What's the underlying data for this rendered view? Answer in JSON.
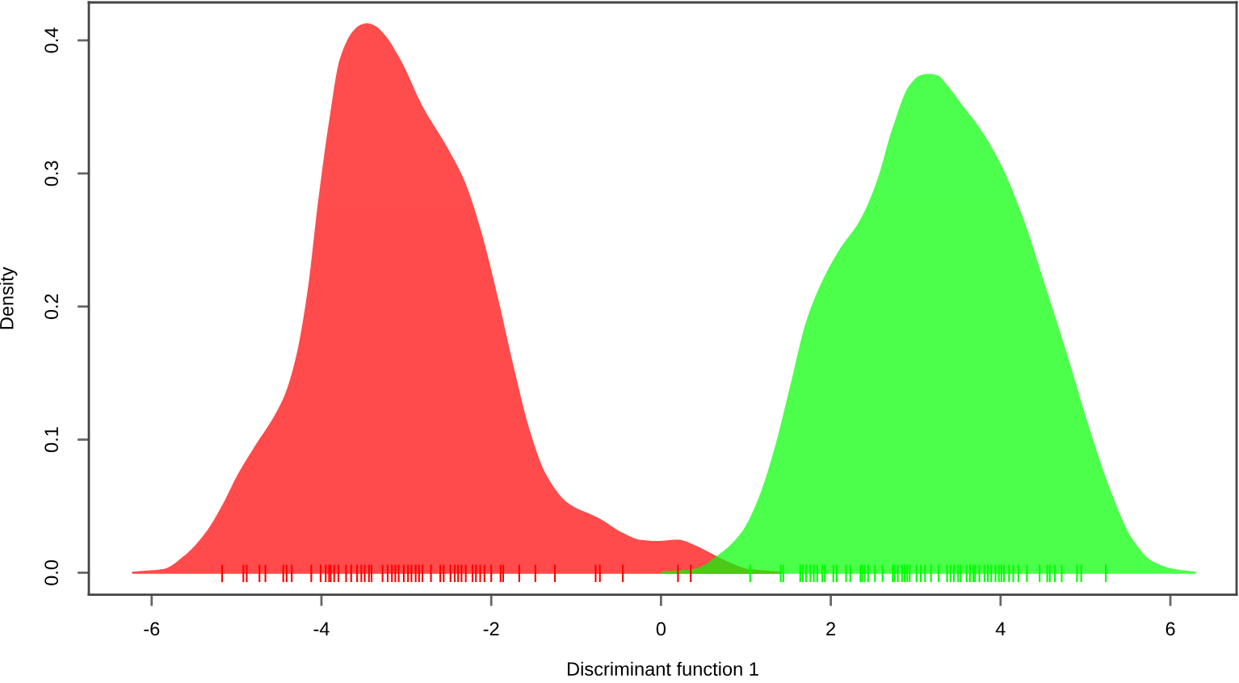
{
  "chart_data": {
    "type": "area",
    "xlabel": "Discriminant function 1",
    "ylabel": "Density",
    "xlim": [
      -6.74,
      6.78
    ],
    "ylim": [
      -0.0165,
      0.4285
    ],
    "xticks": [
      -6,
      -4,
      -2,
      0,
      2,
      4,
      6
    ],
    "yticks": [
      {
        "value": 0,
        "label": "0.0"
      },
      0.1,
      0.2,
      0.3,
      0.4
    ],
    "series": [
      {
        "color": "#ff0000",
        "x": [
          -6.22,
          -5.86,
          -5.61,
          -5.35,
          -5.16,
          -4.97,
          -4.78,
          -4.53,
          -4.41,
          -4.28,
          -4.15,
          -4.03,
          -3.9,
          -3.77,
          -3.61,
          -3.53,
          -3.46,
          -3.37,
          -3.27,
          -3.08,
          -2.82,
          -2.51,
          -2.32,
          -2.13,
          -1.94,
          -1.75,
          -1.56,
          -1.37,
          -1.11,
          -0.73,
          -0.45,
          -0.25,
          -0.05,
          0.2,
          0.39,
          0.58,
          0.77,
          1.03,
          1.41
        ],
        "values": [
          0,
          0.002,
          0.012,
          0.03,
          0.05,
          0.074,
          0.094,
          0.119,
          0.135,
          0.164,
          0.212,
          0.277,
          0.338,
          0.386,
          0.407,
          0.411,
          0.412,
          0.41,
          0.404,
          0.385,
          0.35,
          0.317,
          0.293,
          0.256,
          0.208,
          0.155,
          0.107,
          0.074,
          0.052,
          0.04,
          0.029,
          0.024,
          0.023,
          0.024,
          0.02,
          0.014,
          0.008,
          0.002,
          0
        ]
      },
      {
        "color": "#00ff00",
        "x": [
          0.01,
          0.39,
          0.71,
          0.96,
          1.15,
          1.34,
          1.53,
          1.72,
          1.92,
          2.11,
          2.36,
          2.55,
          2.74,
          2.93,
          3.06,
          3.15,
          3.25,
          3.37,
          3.56,
          3.75,
          4.01,
          4.26,
          4.51,
          4.77,
          5.02,
          5.28,
          5.53,
          5.78,
          6.04,
          6.29
        ],
        "values": [
          0,
          0.002,
          0.014,
          0.03,
          0.054,
          0.091,
          0.139,
          0.188,
          0.22,
          0.242,
          0.265,
          0.293,
          0.334,
          0.365,
          0.373,
          0.374,
          0.373,
          0.365,
          0.349,
          0.333,
          0.304,
          0.265,
          0.216,
          0.164,
          0.111,
          0.062,
          0.026,
          0.008,
          0.002,
          0
        ]
      },
      {
        "type": "bar",
        "color": "#ff0000",
        "x": [
          -5.17,
          -4.92,
          -4.88,
          -4.73,
          -4.66,
          -4.45,
          -4.41,
          -4.35,
          -4.12,
          -4.01,
          -3.95,
          -3.91,
          -3.89,
          -3.85,
          -3.8,
          -3.71,
          -3.65,
          -3.58,
          -3.53,
          -3.49,
          -3.44,
          -3.41,
          -3.28,
          -3.22,
          -3.17,
          -3.13,
          -3.09,
          -3.03,
          -2.98,
          -2.94,
          -2.89,
          -2.85,
          -2.81,
          -2.71,
          -2.6,
          -2.56,
          -2.48,
          -2.43,
          -2.39,
          -2.35,
          -2.3,
          -2.22,
          -2.18,
          -2.13,
          -2.08,
          -2.0,
          -1.89,
          -1.86,
          -1.67,
          -1.48,
          -1.25,
          -0.77,
          -0.72,
          -0.45,
          0.2,
          0.35
        ],
        "base": [
          -0.007,
          -0.007,
          -0.007,
          -0.007,
          -0.007,
          -0.007,
          -0.007,
          -0.007,
          -0.007,
          -0.007,
          -0.007,
          -0.007,
          -0.007,
          -0.007,
          -0.007,
          -0.007,
          -0.007,
          -0.007,
          -0.007,
          -0.007,
          -0.007,
          -0.007,
          -0.007,
          -0.007,
          -0.007,
          -0.007,
          -0.007,
          -0.007,
          -0.007,
          -0.007,
          -0.007,
          -0.007,
          -0.007,
          -0.007,
          -0.007,
          -0.007,
          -0.007,
          -0.007,
          -0.007,
          -0.007,
          -0.007,
          -0.007,
          -0.007,
          -0.007,
          -0.007,
          -0.007,
          -0.007,
          -0.007,
          -0.007,
          -0.007,
          -0.007,
          -0.007,
          -0.007,
          -0.007,
          -0.007,
          -0.007
        ],
        "values": [
          0.013,
          0.013,
          0.013,
          0.013,
          0.013,
          0.013,
          0.013,
          0.013,
          0.013,
          0.013,
          0.013,
          0.013,
          0.013,
          0.013,
          0.013,
          0.013,
          0.013,
          0.013,
          0.013,
          0.013,
          0.013,
          0.013,
          0.013,
          0.013,
          0.013,
          0.013,
          0.013,
          0.013,
          0.013,
          0.013,
          0.013,
          0.013,
          0.013,
          0.013,
          0.013,
          0.013,
          0.013,
          0.013,
          0.013,
          0.013,
          0.013,
          0.013,
          0.013,
          0.013,
          0.013,
          0.013,
          0.013,
          0.013,
          0.013,
          0.013,
          0.013,
          0.013,
          0.013,
          0.013,
          0.013,
          0.013
        ]
      },
      {
        "type": "bar",
        "color": "#00ff00",
        "x": [
          1.05,
          1.41,
          1.44,
          1.64,
          1.67,
          1.71,
          1.76,
          1.8,
          1.84,
          1.9,
          1.93,
          2.03,
          2.07,
          2.18,
          2.23,
          2.35,
          2.37,
          2.4,
          2.44,
          2.52,
          2.61,
          2.73,
          2.75,
          2.79,
          2.84,
          2.87,
          2.9,
          2.93,
          3.01,
          3.06,
          3.11,
          3.18,
          3.27,
          3.37,
          3.41,
          3.45,
          3.5,
          3.53,
          3.6,
          3.64,
          3.68,
          3.7,
          3.75,
          3.81,
          3.85,
          3.89,
          3.94,
          3.98,
          4.01,
          4.04,
          4.1,
          4.15,
          4.21,
          4.31,
          4.46,
          4.55,
          4.58,
          4.64,
          4.72,
          4.9,
          4.95,
          5.24
        ],
        "base": [
          -0.007,
          -0.007,
          -0.007,
          -0.007,
          -0.007,
          -0.007,
          -0.007,
          -0.007,
          -0.007,
          -0.007,
          -0.007,
          -0.007,
          -0.007,
          -0.007,
          -0.007,
          -0.007,
          -0.007,
          -0.007,
          -0.007,
          -0.007,
          -0.007,
          -0.007,
          -0.007,
          -0.007,
          -0.007,
          -0.007,
          -0.007,
          -0.007,
          -0.007,
          -0.007,
          -0.007,
          -0.007,
          -0.007,
          -0.007,
          -0.007,
          -0.007,
          -0.007,
          -0.007,
          -0.007,
          -0.007,
          -0.007,
          -0.007,
          -0.007,
          -0.007,
          -0.007,
          -0.007,
          -0.007,
          -0.007,
          -0.007,
          -0.007,
          -0.007,
          -0.007,
          -0.007,
          -0.007,
          -0.007,
          -0.007,
          -0.007,
          -0.007,
          -0.007,
          -0.007,
          -0.007,
          -0.007
        ],
        "values": [
          0.013,
          0.013,
          0.013,
          0.013,
          0.013,
          0.013,
          0.013,
          0.013,
          0.013,
          0.013,
          0.013,
          0.013,
          0.013,
          0.013,
          0.013,
          0.013,
          0.013,
          0.013,
          0.013,
          0.013,
          0.013,
          0.013,
          0.013,
          0.013,
          0.013,
          0.013,
          0.013,
          0.013,
          0.013,
          0.013,
          0.013,
          0.013,
          0.013,
          0.013,
          0.013,
          0.013,
          0.013,
          0.013,
          0.013,
          0.013,
          0.013,
          0.013,
          0.013,
          0.013,
          0.013,
          0.013,
          0.013,
          0.013,
          0.013,
          0.013,
          0.013,
          0.013,
          0.013,
          0.013,
          0.013,
          0.013,
          0.013,
          0.013,
          0.013,
          0.013,
          0.013,
          0.013
        ]
      }
    ]
  }
}
